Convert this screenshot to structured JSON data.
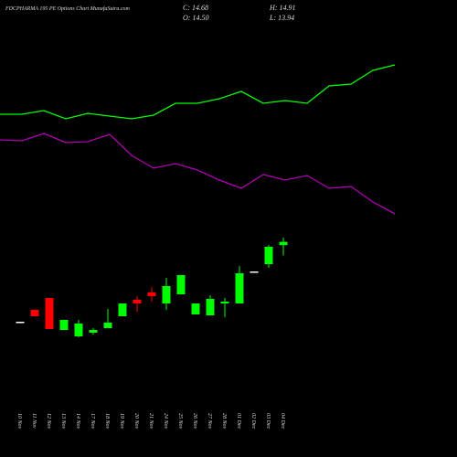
{
  "chart_data": {
    "type": "candlestick",
    "title": "FDCPHARMA 195 PE Options Chart MunafaSutra.com",
    "ohlc_labels": [
      "C: 14.68",
      "H: 14.91",
      "O: 14.50",
      "L: 13.94"
    ],
    "categories": [
      "10 Nov",
      "11 Nov",
      "12 Nov",
      "13 Nov",
      "14 Nov",
      "17 Nov",
      "18 Nov",
      "19 Nov",
      "20 Nov",
      "21 Nov",
      "24 Nov",
      "25 Nov",
      "26 Nov",
      "27 Nov",
      "28 Nov",
      "01 Dec",
      "02 Dec",
      "03 Dec",
      "04 Dec"
    ],
    "open": [
      10.31,
      10.96,
      11.61,
      9.86,
      9.51,
      9.71,
      9.96,
      10.61,
      11.51,
      11.91,
      11.31,
      11.81,
      10.71,
      10.66,
      11.31,
      11.31,
      13.06,
      13.46,
      14.5
    ],
    "high": [
      10.31,
      10.96,
      11.61,
      10.41,
      10.41,
      9.96,
      11.01,
      11.31,
      11.71,
      12.21,
      12.71,
      12.86,
      11.31,
      11.76,
      11.61,
      13.36,
      13.06,
      14.51,
      14.91
    ],
    "low": [
      10.31,
      10.61,
      9.91,
      9.86,
      9.46,
      9.61,
      9.96,
      10.61,
      10.86,
      11.41,
      10.96,
      11.81,
      10.71,
      10.66,
      10.56,
      11.31,
      13.06,
      13.26,
      13.94
    ],
    "close": [
      10.31,
      10.61,
      9.91,
      10.41,
      10.21,
      9.86,
      10.26,
      11.31,
      11.31,
      11.71,
      12.26,
      12.86,
      11.31,
      11.56,
      11.41,
      12.96,
      13.06,
      14.41,
      14.68
    ],
    "up_color": "#00ff00",
    "down_color": "#ff0000",
    "flat_color": "#ffffff",
    "lines": [
      {
        "color": "#00ff00",
        "values": [
          21.66,
          21.66,
          21.86,
          21.41,
          21.71,
          21.56,
          21.41,
          21.61,
          22.26,
          22.26,
          22.51,
          22.91,
          22.26,
          22.41,
          22.26,
          23.21,
          23.31,
          24.06,
          24.36
        ]
      },
      {
        "color": "#b000b0",
        "values": [
          20.26,
          20.21,
          20.61,
          20.11,
          20.16,
          20.56,
          19.41,
          18.71,
          18.96,
          18.61,
          18.06,
          17.61,
          18.36,
          18.06,
          18.31,
          17.61,
          17.71,
          16.86,
          16.21
        ]
      }
    ],
    "ylim": [
      2.91,
      27.91
    ]
  }
}
